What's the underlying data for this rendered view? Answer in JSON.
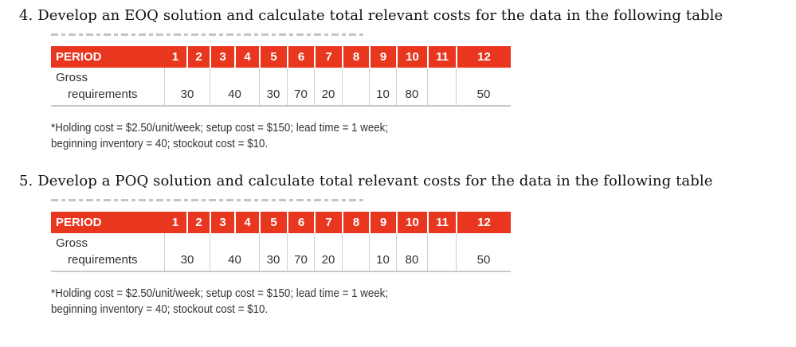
{
  "problems": [
    {
      "heading": "4. Develop an EOQ solution and calculate total relevant costs for the data in the following table",
      "table": {
        "header_label": "PERIOD",
        "periods": [
          "1",
          "2",
          "3",
          "4",
          "5",
          "6",
          "7",
          "8",
          "9",
          "10",
          "11",
          "12"
        ],
        "row_label_line1": "Gross",
        "row_label_line2": "requirements",
        "values": [
          "30",
          "",
          "40",
          "",
          "30",
          "70",
          "20",
          "",
          "10",
          "80",
          "",
          "50"
        ]
      },
      "footnote_line1": "*Holding cost = $2.50/unit/week; setup cost = $150; lead time = 1 week;",
      "footnote_line2": "beginning inventory = 40; stockout cost = $10."
    },
    {
      "heading": "5. Develop a POQ solution and calculate total relevant costs for the data in the following table",
      "table": {
        "header_label": "PERIOD",
        "periods": [
          "1",
          "2",
          "3",
          "4",
          "5",
          "6",
          "7",
          "8",
          "9",
          "10",
          "11",
          "12"
        ],
        "row_label_line1": "Gross",
        "row_label_line2": "requirements",
        "values": [
          "30",
          "",
          "40",
          "",
          "30",
          "70",
          "20",
          "",
          "10",
          "80",
          "",
          "50"
        ]
      },
      "footnote_line1": "*Holding cost = $2.50/unit/week; setup cost = $150; lead time = 1 week;",
      "footnote_line2": "beginning inventory = 40; stockout cost = $10."
    }
  ]
}
